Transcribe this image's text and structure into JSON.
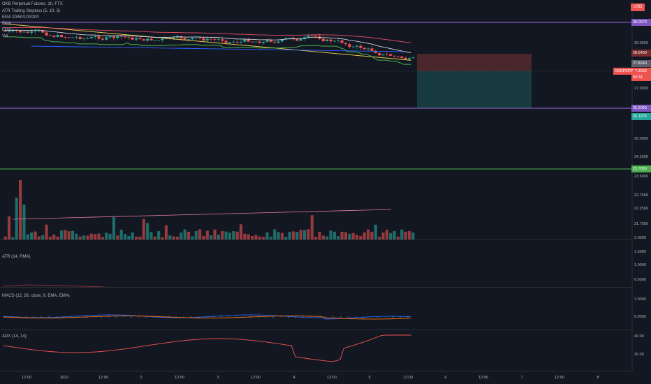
{
  "title": "OKB Perpetual Futures, 1h, FTX",
  "currency": "USD",
  "legend": [
    "ATR Trailing Stoploss (5, 10, 3)",
    "EMA 20/50/100/200",
    "EMA",
    "EMA",
    "Vol"
  ],
  "price_labels": {
    "upper_level": "30.0570",
    "stop": "28.6430",
    "close_dark": "27.8240",
    "symbol_tag": "OKBPERP",
    "last_price": "27.8030",
    "countdown": "03:34",
    "lower_level": "26.2090",
    "target": "26.1975",
    "green_level": "23.7830"
  },
  "price_ticks": [
    "29.0000",
    "27.0000",
    "25.0000",
    "24.2500",
    "23.5000",
    "22.7500",
    "22.2500",
    "21.7500",
    "2.0000"
  ],
  "atr": {
    "title": "ATR (14, RMA)",
    "ticks": [
      "1.5000",
      "1.0000",
      "0.5000"
    ]
  },
  "macd": {
    "title": "MACD (12, 26, close, 9, EMA, EMA)",
    "ticks": [
      "1.0000",
      "0.0000"
    ]
  },
  "adx": {
    "title": "ADX (14, 14)",
    "ticks": [
      "40.00",
      "20.00"
    ]
  },
  "time_axis": [
    "12:00",
    "2022",
    "12:00",
    "2",
    "12:00",
    "3",
    "12:00",
    "4",
    "12:00",
    "5",
    "12:00",
    "6",
    "12:00",
    "7",
    "12:00",
    "8"
  ],
  "colors": {
    "bg": "#131722",
    "up": "#26a69a",
    "down": "#ef5350",
    "level_purple": "#7e57c2",
    "level_green": "#4caf50",
    "ema_yellow": "#e3c84b",
    "ema_red": "#e04f67",
    "ema_blue": "#2962ff",
    "ema_white": "#d1d4dc",
    "stop_green": "#4caf50"
  }
}
